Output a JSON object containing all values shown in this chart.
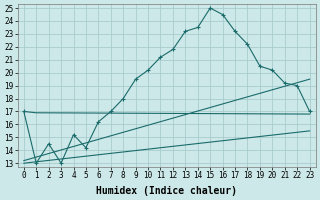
{
  "xlabel": "Humidex (Indice chaleur)",
  "bg_color": "#cde8e8",
  "line_color": "#1a6b6b",
  "grid_color": "#a8cccc",
  "xlim": [
    -0.5,
    23.5
  ],
  "ylim": [
    12.7,
    25.3
  ],
  "xticks": [
    0,
    1,
    2,
    3,
    4,
    5,
    6,
    7,
    8,
    9,
    10,
    11,
    12,
    13,
    14,
    15,
    16,
    17,
    18,
    19,
    20,
    21,
    22,
    23
  ],
  "yticks": [
    13,
    14,
    15,
    16,
    17,
    18,
    19,
    20,
    21,
    22,
    23,
    24,
    25
  ],
  "line1_x": [
    0,
    1,
    2,
    3,
    4,
    5,
    6,
    7,
    8,
    9,
    10,
    11,
    12,
    13,
    14,
    15,
    16,
    17,
    18,
    19,
    20,
    21,
    22,
    23
  ],
  "line1_y": [
    17,
    13,
    14.5,
    13,
    15.2,
    14.2,
    16.2,
    17.0,
    18.0,
    19.5,
    20.2,
    21.2,
    21.8,
    23.2,
    23.5,
    25.0,
    24.5,
    23.2,
    22.2,
    20.5,
    20.2,
    19.2,
    19.0,
    17.0
  ],
  "line2_x": [
    0,
    1,
    23
  ],
  "line2_y": [
    17.0,
    16.9,
    16.8
  ],
  "line3_x": [
    0,
    23
  ],
  "line3_y": [
    13.0,
    15.5
  ],
  "line4_x": [
    0,
    23
  ],
  "line4_y": [
    13.2,
    19.5
  ],
  "xlabel_fontsize": 7,
  "tick_fontsize": 5.5
}
